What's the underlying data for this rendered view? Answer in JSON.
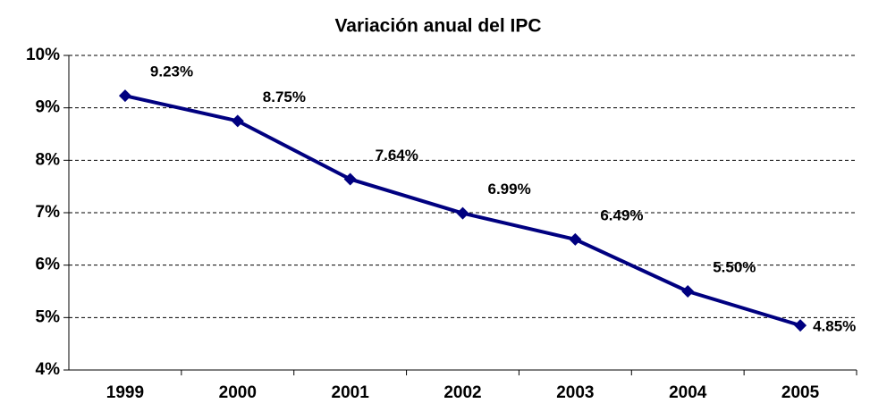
{
  "chart_data": {
    "type": "line",
    "title": "Variación anual del IPC",
    "categories": [
      "1999",
      "2000",
      "2001",
      "2002",
      "2003",
      "2004",
      "2005"
    ],
    "series": [
      {
        "name": "IPC",
        "color": "#000080",
        "values": [
          9.23,
          8.75,
          7.64,
          6.99,
          6.49,
          5.5,
          4.85
        ],
        "value_labels": [
          "9.23%",
          "8.75%",
          "7.64%",
          "6.99%",
          "6.49%",
          "5.50%",
          "4.85%"
        ]
      }
    ],
    "ylim": [
      4,
      10
    ],
    "yticks": [
      {
        "value": 4,
        "label": "4%"
      },
      {
        "value": 5,
        "label": "5%"
      },
      {
        "value": 6,
        "label": "6%"
      },
      {
        "value": 7,
        "label": "7%"
      },
      {
        "value": 8,
        "label": "8%"
      },
      {
        "value": 9,
        "label": "9%"
      },
      {
        "value": 10,
        "label": "10%"
      }
    ],
    "grid": true
  }
}
